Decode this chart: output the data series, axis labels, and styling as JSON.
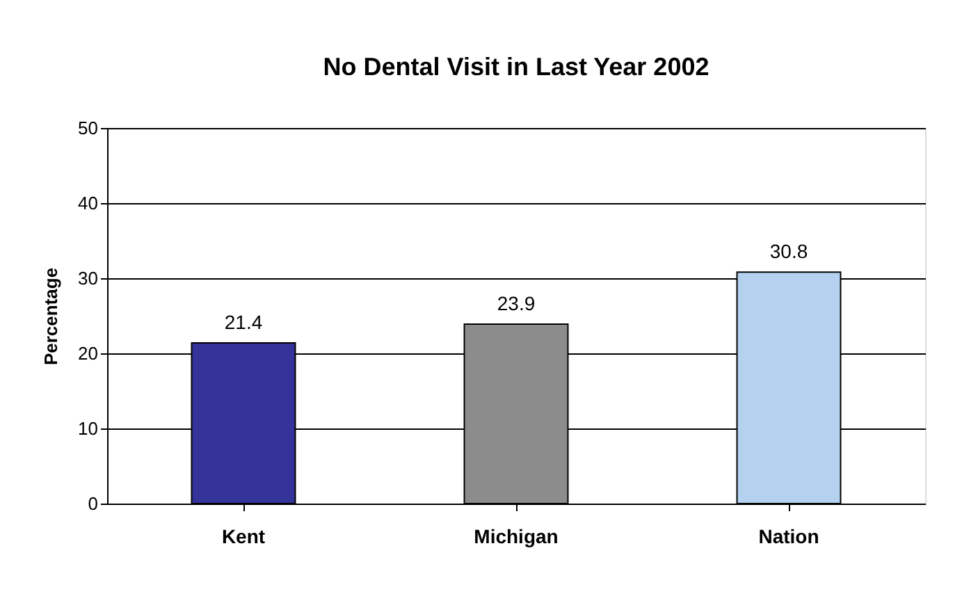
{
  "chart_data": {
    "type": "bar",
    "title": "No Dental Visit in Last Year 2002",
    "ylabel": "Percentage",
    "categories": [
      "Kent",
      "Michigan",
      "Nation"
    ],
    "values": [
      21.4,
      23.9,
      30.8
    ],
    "colors": [
      "#333399",
      "#8c8c8c",
      "#b4d2ef"
    ],
    "ylim": [
      0,
      50
    ],
    "yticks": [
      0,
      10,
      20,
      30,
      40,
      50
    ],
    "grid": "y",
    "data_labels": true,
    "legend": false
  }
}
